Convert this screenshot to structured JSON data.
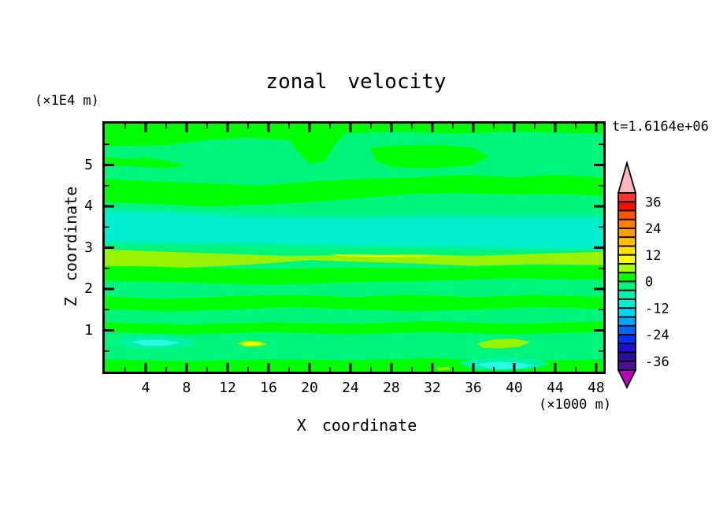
{
  "header": {
    "title": "zonal velocity",
    "time_label": "t=1.6164e+06"
  },
  "axes": {
    "x": {
      "label": "X coordinate",
      "unit": "(×1000 m)",
      "range": [
        0,
        48.7
      ],
      "major_ticks": [
        4,
        8,
        12,
        16,
        20,
        24,
        28,
        32,
        36,
        40,
        44,
        48
      ],
      "minor_ticks": [
        2,
        6,
        10,
        14,
        18,
        22,
        26,
        30,
        34,
        38,
        42,
        46
      ]
    },
    "z": {
      "label": "Z coordinate",
      "unit": "(×1E4 m)",
      "range": [
        0,
        6
      ],
      "major_ticks": [
        1,
        2,
        3,
        4,
        5
      ],
      "minor_ticks": [
        0.5,
        1.5,
        2.5,
        3.5,
        4.5,
        5.5
      ]
    }
  },
  "colorbar": {
    "labels": [
      36,
      24,
      12,
      0,
      -12,
      -24,
      -36
    ],
    "over_color": "#FFB4BE",
    "under_color": "#BE00BE",
    "cells": [
      {
        "range": [
          36,
          40
        ],
        "color": "#FF3232"
      },
      {
        "range": [
          32,
          36
        ],
        "color": "#F50F00"
      },
      {
        "range": [
          28,
          32
        ],
        "color": "#FF5500"
      },
      {
        "range": [
          24,
          28
        ],
        "color": "#FF7D00"
      },
      {
        "range": [
          20,
          24
        ],
        "color": "#FF9E00"
      },
      {
        "range": [
          16,
          20
        ],
        "color": "#FFBE00"
      },
      {
        "range": [
          12,
          16
        ],
        "color": "#FFE100"
      },
      {
        "range": [
          8,
          12
        ],
        "color": "#FFFF00"
      },
      {
        "range": [
          4,
          8
        ],
        "color": "#A0FF00"
      },
      {
        "range": [
          0,
          4
        ],
        "color": "#00FF00"
      },
      {
        "range": [
          -4,
          0
        ],
        "color": "#00F57D"
      },
      {
        "range": [
          -8,
          -4
        ],
        "color": "#00F2A9"
      },
      {
        "range": [
          -12,
          -8
        ],
        "color": "#00EFCE"
      },
      {
        "range": [
          -16,
          -12
        ],
        "color": "#00D7F0"
      },
      {
        "range": [
          -20,
          -16
        ],
        "color": "#00A5FF"
      },
      {
        "range": [
          -24,
          -20
        ],
        "color": "#0064FF"
      },
      {
        "range": [
          -28,
          -24
        ],
        "color": "#0032FF"
      },
      {
        "range": [
          -32,
          -28
        ],
        "color": "#1E0FDC"
      },
      {
        "range": [
          -36,
          -32
        ],
        "color": "#2A0F9E"
      },
      {
        "range": [
          -40,
          -36
        ],
        "color": "#4B0F96"
      }
    ]
  },
  "chart_data": {
    "type": "filled_contour",
    "title": "zonal velocity",
    "xlabel": "X coordinate",
    "ylabel": "Z coordinate",
    "x_unit": "×1000 m",
    "z_unit": "×1E4 m",
    "time": "t=1.6164e+06",
    "x_range": [
      0,
      48.7
    ],
    "z_range": [
      0,
      6
    ],
    "contour_interval": 4,
    "palette": {
      "sg": "#00F57D",
      "bg": "#00FF00",
      "tg": "#00F2A9",
      "tq": "#00EFCE",
      "cy": "#28FBDF",
      "ch": "#9AF200",
      "yl": "#FFFF00"
    },
    "background_level": {
      "range": [
        -4,
        0
      ],
      "color_key": "sg"
    },
    "bands": [
      {
        "level": [
          0,
          4
        ],
        "color_key": "bg",
        "points": [
          [
            0,
            6
          ],
          [
            48.7,
            6
          ],
          [
            48.7,
            5.76
          ],
          [
            40,
            5.8
          ],
          [
            34,
            5.76
          ],
          [
            28,
            5.8
          ],
          [
            23.5,
            5.76
          ],
          [
            22.5,
            5.5
          ],
          [
            21.5,
            5.08
          ],
          [
            20,
            5.02
          ],
          [
            19,
            5.28
          ],
          [
            18,
            5.6
          ],
          [
            14,
            5.66
          ],
          [
            10,
            5.6
          ],
          [
            6,
            5.48
          ],
          [
            0,
            5.45
          ]
        ]
      },
      {
        "level": [
          0,
          4
        ],
        "color_key": "bg",
        "points": [
          [
            0,
            5.2
          ],
          [
            2,
            5.15
          ],
          [
            4,
            5.18
          ],
          [
            6,
            5.1
          ],
          [
            8,
            5.0
          ],
          [
            6,
            4.92
          ],
          [
            4,
            4.95
          ],
          [
            2,
            4.98
          ],
          [
            0,
            4.95
          ]
        ]
      },
      {
        "level": [
          0,
          4
        ],
        "color_key": "bg",
        "points": [
          [
            25.9,
            5.4
          ],
          [
            28,
            5.47
          ],
          [
            32,
            5.5
          ],
          [
            36,
            5.42
          ],
          [
            37.5,
            5.2
          ],
          [
            36,
            5.0
          ],
          [
            32,
            4.92
          ],
          [
            28,
            4.95
          ],
          [
            26.5,
            5.1
          ]
        ]
      },
      {
        "level": [
          0,
          4
        ],
        "color_key": "bg",
        "points": [
          [
            0,
            4.66
          ],
          [
            5,
            4.6
          ],
          [
            10,
            4.56
          ],
          [
            15,
            4.5
          ],
          [
            20,
            4.6
          ],
          [
            25,
            4.66
          ],
          [
            30,
            4.7
          ],
          [
            35,
            4.76
          ],
          [
            40,
            4.7
          ],
          [
            44,
            4.76
          ],
          [
            48.7,
            4.7
          ],
          [
            48.7,
            4.26
          ],
          [
            44,
            4.3
          ],
          [
            40,
            4.28
          ],
          [
            35,
            4.32
          ],
          [
            30,
            4.3
          ],
          [
            25,
            4.2
          ],
          [
            20,
            4.1
          ],
          [
            15,
            4.04
          ],
          [
            10,
            4.0
          ],
          [
            5,
            4.06
          ],
          [
            0,
            4.1
          ]
        ]
      },
      {
        "level": [
          -8,
          -4
        ],
        "color_key": "tg",
        "points": [
          [
            0,
            3.96
          ],
          [
            8,
            3.9
          ],
          [
            16,
            3.8
          ],
          [
            24,
            3.78
          ],
          [
            32,
            3.82
          ],
          [
            40,
            3.8
          ],
          [
            48.7,
            3.8
          ],
          [
            48.7,
            2.92
          ],
          [
            40,
            2.94
          ],
          [
            32,
            2.98
          ],
          [
            24,
            3.0
          ],
          [
            16,
            3.04
          ],
          [
            8,
            3.06
          ],
          [
            0,
            3.08
          ]
        ]
      },
      {
        "level": [
          -12,
          -8
        ],
        "color_key": "tq",
        "points": [
          [
            0,
            3.86
          ],
          [
            8,
            3.8
          ],
          [
            16,
            3.7
          ],
          [
            24,
            3.68
          ],
          [
            32,
            3.72
          ],
          [
            40,
            3.7
          ],
          [
            48.7,
            3.7
          ],
          [
            48.7,
            3.0
          ],
          [
            40,
            3.02
          ],
          [
            32,
            3.06
          ],
          [
            24,
            3.08
          ],
          [
            16,
            3.12
          ],
          [
            8,
            3.14
          ],
          [
            0,
            3.16
          ]
        ]
      },
      {
        "level": [
          0,
          4
        ],
        "color_key": "bg",
        "points": [
          [
            0,
            2.56
          ],
          [
            8,
            2.52
          ],
          [
            16,
            2.48
          ],
          [
            24,
            2.52
          ],
          [
            32,
            2.5
          ],
          [
            40,
            2.56
          ],
          [
            48.7,
            2.56
          ],
          [
            48.7,
            2.22
          ],
          [
            40,
            2.26
          ],
          [
            32,
            2.2
          ],
          [
            24,
            2.16
          ],
          [
            16,
            2.1
          ],
          [
            8,
            2.16
          ],
          [
            0,
            2.2
          ]
        ]
      },
      {
        "level": [
          4,
          8
        ],
        "color_key": "ch",
        "points": [
          [
            0,
            2.96
          ],
          [
            6,
            2.9
          ],
          [
            12,
            2.85
          ],
          [
            18,
            2.8
          ],
          [
            24,
            2.82
          ],
          [
            30,
            2.84
          ],
          [
            36,
            2.8
          ],
          [
            42,
            2.85
          ],
          [
            48.7,
            2.9
          ],
          [
            48.7,
            2.58
          ],
          [
            42,
            2.6
          ],
          [
            36,
            2.56
          ],
          [
            30,
            2.62
          ],
          [
            24,
            2.66
          ],
          [
            20,
            2.7
          ],
          [
            16,
            2.62
          ],
          [
            12,
            2.56
          ],
          [
            8,
            2.52
          ],
          [
            4,
            2.55
          ],
          [
            0,
            2.56
          ]
        ]
      },
      {
        "level": [
          8,
          12
        ],
        "color_key": "yl",
        "points": [
          [
            22,
            2.84
          ],
          [
            28,
            2.82
          ],
          [
            33,
            2.8
          ],
          [
            28,
            2.78
          ],
          [
            23,
            2.8
          ]
        ]
      },
      {
        "level": [
          0,
          4
        ],
        "color_key": "bg",
        "points": [
          [
            0,
            1.82
          ],
          [
            6,
            1.76
          ],
          [
            12,
            1.82
          ],
          [
            18,
            1.86
          ],
          [
            24,
            1.8
          ],
          [
            30,
            1.86
          ],
          [
            36,
            1.8
          ],
          [
            42,
            1.86
          ],
          [
            48.7,
            1.8
          ],
          [
            48.7,
            1.52
          ],
          [
            42,
            1.56
          ],
          [
            36,
            1.5
          ],
          [
            30,
            1.46
          ],
          [
            24,
            1.52
          ],
          [
            18,
            1.56
          ],
          [
            12,
            1.5
          ],
          [
            6,
            1.46
          ],
          [
            0,
            1.52
          ]
        ]
      },
      {
        "level": [
          0,
          4
        ],
        "color_key": "bg",
        "points": [
          [
            0,
            1.2
          ],
          [
            8,
            1.14
          ],
          [
            16,
            1.2
          ],
          [
            24,
            1.16
          ],
          [
            32,
            1.22
          ],
          [
            40,
            1.16
          ],
          [
            48.7,
            1.22
          ],
          [
            48.7,
            0.96
          ],
          [
            40,
            0.9
          ],
          [
            32,
            0.96
          ],
          [
            24,
            0.9
          ],
          [
            16,
            0.96
          ],
          [
            8,
            0.9
          ],
          [
            0,
            0.96
          ]
        ]
      },
      {
        "level": [
          0,
          4
        ],
        "color_key": "bg",
        "points": [
          [
            0,
            0.3
          ],
          [
            8,
            0.26
          ],
          [
            16,
            0.3
          ],
          [
            24,
            0.28
          ],
          [
            32,
            0.33
          ],
          [
            40,
            0.26
          ],
          [
            48.7,
            0.3
          ],
          [
            48.7,
            0
          ],
          [
            0,
            0
          ]
        ]
      },
      {
        "level": [
          -8,
          -4
        ],
        "color_key": "tg",
        "points": [
          [
            1.2,
            0.75
          ],
          [
            2.5,
            0.85
          ],
          [
            5,
            0.88
          ],
          [
            7.5,
            0.82
          ],
          [
            8.8,
            0.72
          ],
          [
            7.5,
            0.6
          ],
          [
            5,
            0.55
          ],
          [
            2.5,
            0.58
          ]
        ]
      },
      {
        "level": [
          -12,
          -8
        ],
        "color_key": "cy",
        "points": [
          [
            2.6,
            0.72
          ],
          [
            4,
            0.78
          ],
          [
            6,
            0.76
          ],
          [
            7.3,
            0.7
          ],
          [
            6,
            0.63
          ],
          [
            4,
            0.62
          ]
        ]
      },
      {
        "level": [
          -8,
          -4
        ],
        "color_key": "tg",
        "points": [
          [
            34.5,
            0.22
          ],
          [
            36,
            0.3
          ],
          [
            39,
            0.34
          ],
          [
            42,
            0.3
          ],
          [
            43.5,
            0.2
          ],
          [
            42,
            0.08
          ],
          [
            39,
            0.03
          ],
          [
            36,
            0.06
          ]
        ]
      },
      {
        "level": [
          -12,
          -8
        ],
        "color_key": "cy",
        "points": [
          [
            36,
            0.18
          ],
          [
            38,
            0.24
          ],
          [
            40.5,
            0.22
          ],
          [
            42,
            0.15
          ],
          [
            40.5,
            0.07
          ],
          [
            38,
            0.06
          ]
        ]
      },
      {
        "level": [
          4,
          8
        ],
        "color_key": "ch",
        "points": [
          [
            36.3,
            0.68
          ],
          [
            38,
            0.78
          ],
          [
            40,
            0.8
          ],
          [
            41.6,
            0.72
          ],
          [
            40.5,
            0.6
          ],
          [
            38.5,
            0.56
          ],
          [
            37,
            0.58
          ]
        ]
      },
      {
        "level": [
          4,
          8
        ],
        "color_key": "ch",
        "points": [
          [
            12.9,
            0.68
          ],
          [
            13.8,
            0.75
          ],
          [
            15,
            0.74
          ],
          [
            15.9,
            0.66
          ],
          [
            15,
            0.6
          ],
          [
            13.8,
            0.6
          ]
        ]
      },
      {
        "level": [
          8,
          12
        ],
        "color_key": "yl",
        "points": [
          [
            13.4,
            0.68
          ],
          [
            14.2,
            0.72
          ],
          [
            15.1,
            0.7
          ],
          [
            15.3,
            0.66
          ],
          [
            14.4,
            0.63
          ],
          [
            13.7,
            0.64
          ]
        ]
      },
      {
        "level": [
          4,
          8
        ],
        "color_key": "ch",
        "points": [
          [
            32.4,
            0.1
          ],
          [
            33.6,
            0.12
          ],
          [
            33.8,
            0.05
          ],
          [
            32.6,
            0.03
          ]
        ]
      }
    ]
  }
}
